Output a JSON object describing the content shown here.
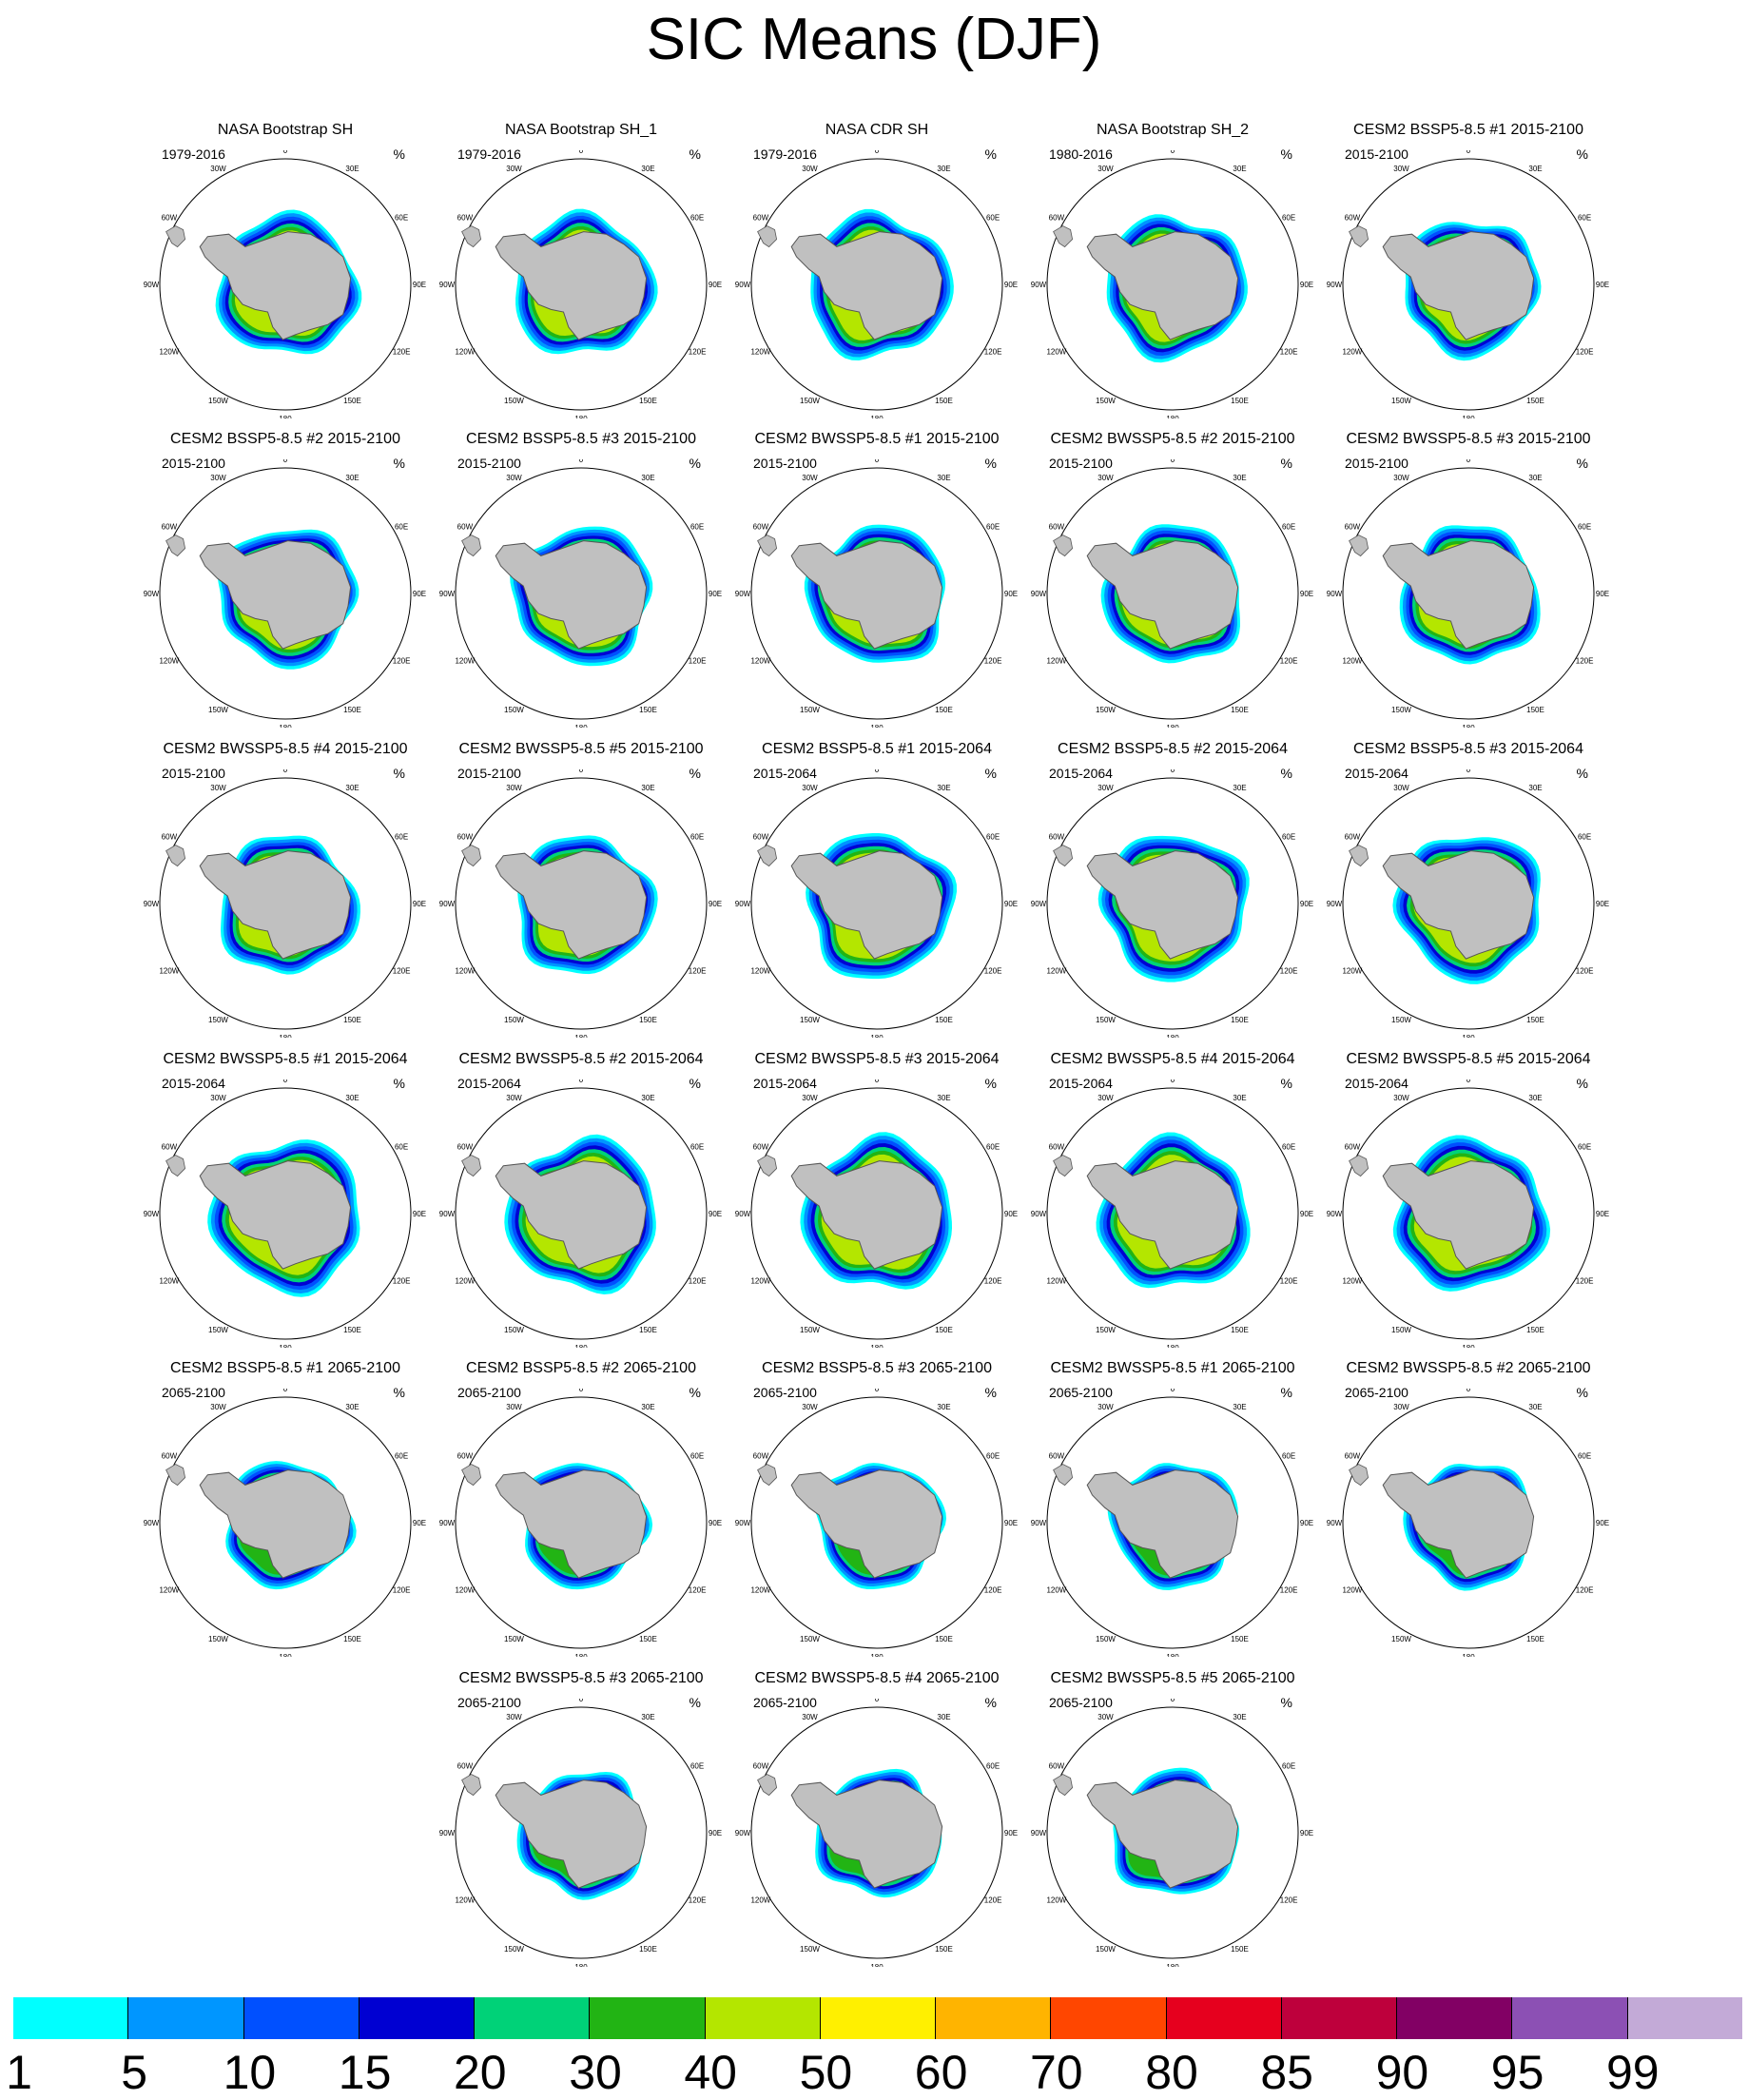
{
  "title": "SIC Means (DJF)",
  "units": "%",
  "map_labels": {
    "lon": [
      "0",
      "30E",
      "60E",
      "90E",
      "120E",
      "150E",
      "180",
      "150W",
      "120W",
      "90W",
      "60W",
      "30W"
    ]
  },
  "panels": [
    {
      "title": "NASA Bootstrap SH",
      "left": "1979-2016",
      "right": "%",
      "ice": 0.56,
      "arc": "obs"
    },
    {
      "title": "NASA Bootstrap SH_1",
      "left": "1979-2016",
      "right": "%",
      "ice": 0.56,
      "arc": "obs"
    },
    {
      "title": "NASA CDR SH",
      "left": "1979-2016",
      "right": "%",
      "ice": 0.57,
      "arc": "obs"
    },
    {
      "title": "NASA Bootstrap SH_2",
      "left": "1980-2016",
      "right": "%",
      "ice": 0.56,
      "arc": "obs"
    },
    {
      "title": "CESM2 BSSP5-8.5 #1 2015-2100",
      "left": "2015-2100",
      "right": "%",
      "ice": 0.54,
      "arc": "mid"
    },
    {
      "title": "CESM2 BSSP5-8.5 #2 2015-2100",
      "left": "2015-2100",
      "right": "%",
      "ice": 0.55,
      "arc": "mid"
    },
    {
      "title": "CESM2 BSSP5-8.5 #3 2015-2100",
      "left": "2015-2100",
      "right": "%",
      "ice": 0.55,
      "arc": "mid"
    },
    {
      "title": "CESM2 BWSSP5-8.5 #1 2015-2100",
      "left": "2015-2100",
      "right": "%",
      "ice": 0.55,
      "arc": "mid"
    },
    {
      "title": "CESM2 BWSSP5-8.5 #2 2015-2100",
      "left": "2015-2100",
      "right": "%",
      "ice": 0.55,
      "arc": "mid"
    },
    {
      "title": "CESM2 BWSSP5-8.5 #3 2015-2100",
      "left": "2015-2100",
      "right": "%",
      "ice": 0.55,
      "arc": "mid"
    },
    {
      "title": "CESM2 BWSSP5-8.5 #4 2015-2100",
      "left": "2015-2100",
      "right": "%",
      "ice": 0.55,
      "arc": "mid"
    },
    {
      "title": "CESM2 BWSSP5-8.5 #5 2015-2100",
      "left": "2015-2100",
      "right": "%",
      "ice": 0.55,
      "arc": "mid"
    },
    {
      "title": "CESM2 BSSP5-8.5 #1 2015-2064",
      "left": "2015-2064",
      "right": "%",
      "ice": 0.58,
      "arc": "mid"
    },
    {
      "title": "CESM2 BSSP5-8.5 #2 2015-2064",
      "left": "2015-2064",
      "right": "%",
      "ice": 0.58,
      "arc": "mid"
    },
    {
      "title": "CESM2 BSSP5-8.5 #3 2015-2064",
      "left": "2015-2064",
      "right": "%",
      "ice": 0.58,
      "arc": "mid"
    },
    {
      "title": "CESM2 BWSSP5-8.5 #1 2015-2064",
      "left": "2015-2064",
      "right": "%",
      "ice": 0.6,
      "arc": "high"
    },
    {
      "title": "CESM2 BWSSP5-8.5 #2 2015-2064",
      "left": "2015-2064",
      "right": "%",
      "ice": 0.6,
      "arc": "high"
    },
    {
      "title": "CESM2 BWSSP5-8.5 #3 2015-2064",
      "left": "2015-2064",
      "right": "%",
      "ice": 0.6,
      "arc": "high"
    },
    {
      "title": "CESM2 BWSSP5-8.5 #4 2015-2064",
      "left": "2015-2064",
      "right": "%",
      "ice": 0.6,
      "arc": "high"
    },
    {
      "title": "CESM2 BWSSP5-8.5 #5 2015-2064",
      "left": "2015-2064",
      "right": "%",
      "ice": 0.6,
      "arc": "high"
    },
    {
      "title": "CESM2 BSSP5-8.5 #1 2065-2100",
      "left": "2065-2100",
      "right": "%",
      "ice": 0.5,
      "arc": "low"
    },
    {
      "title": "CESM2 BSSP5-8.5 #2 2065-2100",
      "left": "2065-2100",
      "right": "%",
      "ice": 0.5,
      "arc": "low"
    },
    {
      "title": "CESM2 BSSP5-8.5 #3 2065-2100",
      "left": "2065-2100",
      "right": "%",
      "ice": 0.5,
      "arc": "low"
    },
    {
      "title": "CESM2 BWSSP5-8.5 #1 2065-2100",
      "left": "2065-2100",
      "right": "%",
      "ice": 0.5,
      "arc": "low"
    },
    {
      "title": "CESM2 BWSSP5-8.5 #2 2065-2100",
      "left": "2065-2100",
      "right": "%",
      "ice": 0.5,
      "arc": "low"
    },
    {
      "title": "CESM2 BWSSP5-8.5 #3 2065-2100",
      "left": "2065-2100",
      "right": "%",
      "ice": 0.5,
      "arc": "low"
    },
    {
      "title": "CESM2 BWSSP5-8.5 #4 2065-2100",
      "left": "2065-2100",
      "right": "%",
      "ice": 0.5,
      "arc": "low"
    },
    {
      "title": "CESM2 BWSSP5-8.5 #5 2065-2100",
      "left": "2065-2100",
      "right": "%",
      "ice": 0.5,
      "arc": "low"
    }
  ],
  "colorbar": {
    "labels": [
      "1",
      "5",
      "10",
      "15",
      "20",
      "30",
      "40",
      "50",
      "60",
      "70",
      "80",
      "85",
      "90",
      "95",
      "99"
    ],
    "colors": [
      "#00ffff",
      "#0096ff",
      "#0050ff",
      "#0000d2",
      "#00d278",
      "#22b414",
      "#b4e600",
      "#fff000",
      "#ffb400",
      "#ff4600",
      "#e6001e",
      "#be003c",
      "#820064",
      "#8c50b4",
      "#c3aad7"
    ]
  },
  "map_colors": {
    "land": "#c0c0c0",
    "ocean": "#ffffff",
    "coast": "#555555"
  }
}
